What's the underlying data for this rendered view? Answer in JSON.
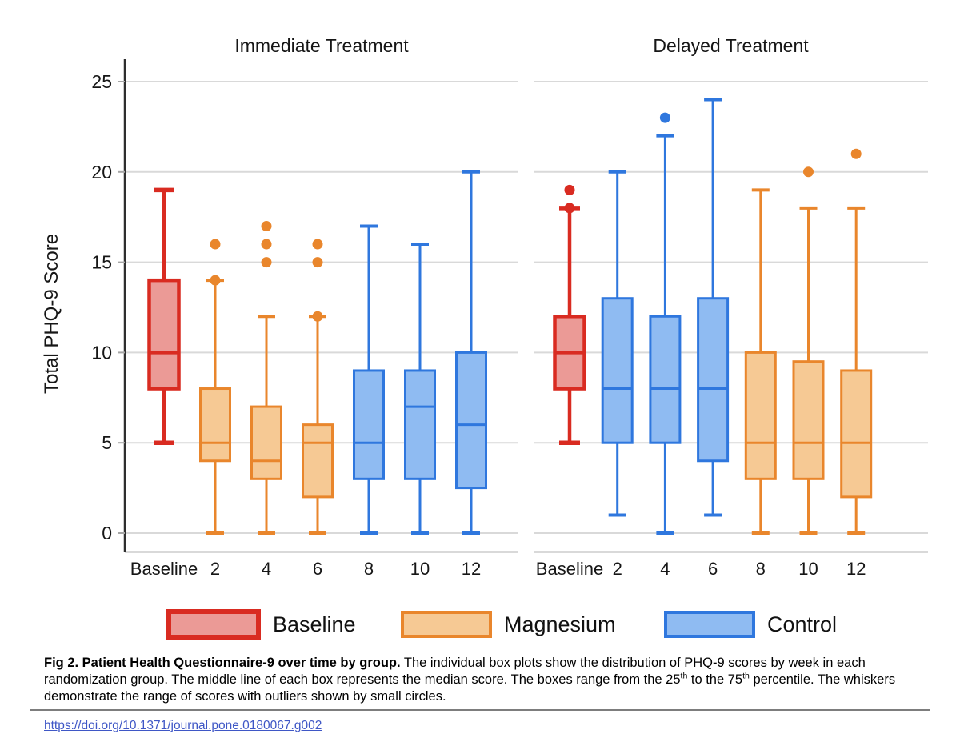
{
  "figure": {
    "y_axis_label": "Total PHQ-9 Score",
    "y_ticks": [
      0,
      5,
      10,
      15,
      20,
      25
    ],
    "x_tick_labels": [
      "Baseline",
      "2",
      "4",
      "6",
      "8",
      "10",
      "12"
    ]
  },
  "legend": {
    "items": [
      {
        "label": "Baseline",
        "stroke": "#d92b21",
        "fill": "#eb9a96"
      },
      {
        "label": "Magnesium",
        "stroke": "#e9862c",
        "fill": "#f6c994"
      },
      {
        "label": "Control",
        "stroke": "#2f77de",
        "fill": "#8fbbf2"
      }
    ]
  },
  "chart_data": [
    {
      "type": "boxplot",
      "title": "Immediate Treatment",
      "ylabel": "Total PHQ-9 Score",
      "ylim": [
        0,
        25
      ],
      "yticks": [
        0,
        5,
        10,
        15,
        20,
        25
      ],
      "categories": [
        "Baseline",
        "2",
        "4",
        "6",
        "8",
        "10",
        "12"
      ],
      "boxes": [
        {
          "x": "Baseline",
          "group": "Baseline",
          "whisker_low": 5,
          "q1": 8,
          "median": 10,
          "q3": 14,
          "whisker_high": 19,
          "outliers": []
        },
        {
          "x": "2",
          "group": "Magnesium",
          "whisker_low": 0,
          "q1": 4,
          "median": 5,
          "q3": 8,
          "whisker_high": 14,
          "outliers": [
            14,
            16
          ]
        },
        {
          "x": "4",
          "group": "Magnesium",
          "whisker_low": 0,
          "q1": 3,
          "median": 4,
          "q3": 7,
          "whisker_high": 12,
          "outliers": [
            15,
            16,
            17
          ]
        },
        {
          "x": "6",
          "group": "Magnesium",
          "whisker_low": 0,
          "q1": 2,
          "median": 5,
          "q3": 6,
          "whisker_high": 12,
          "outliers": [
            12,
            15,
            16
          ]
        },
        {
          "x": "8",
          "group": "Control",
          "whisker_low": 0,
          "q1": 3,
          "median": 5,
          "q3": 9,
          "whisker_high": 17,
          "outliers": []
        },
        {
          "x": "10",
          "group": "Control",
          "whisker_low": 0,
          "q1": 3,
          "median": 7,
          "q3": 9,
          "whisker_high": 16,
          "outliers": []
        },
        {
          "x": "12",
          "group": "Control",
          "whisker_low": 0,
          "q1": 2.5,
          "median": 6,
          "q3": 10,
          "whisker_high": 20,
          "outliers": []
        }
      ]
    },
    {
      "type": "boxplot",
      "title": "Delayed Treatment",
      "ylabel": "Total PHQ-9 Score",
      "ylim": [
        0,
        25
      ],
      "yticks": [
        0,
        5,
        10,
        15,
        20,
        25
      ],
      "categories": [
        "Baseline",
        "2",
        "4",
        "6",
        "8",
        "10",
        "12"
      ],
      "boxes": [
        {
          "x": "Baseline",
          "group": "Baseline",
          "whisker_low": 5,
          "q1": 8,
          "median": 10,
          "q3": 12,
          "whisker_high": 18,
          "outliers": [
            18,
            19
          ]
        },
        {
          "x": "2",
          "group": "Control",
          "whisker_low": 1,
          "q1": 5,
          "median": 8,
          "q3": 13,
          "whisker_high": 20,
          "outliers": []
        },
        {
          "x": "4",
          "group": "Control",
          "whisker_low": 0,
          "q1": 5,
          "median": 8,
          "q3": 12,
          "whisker_high": 22,
          "outliers": [
            23
          ]
        },
        {
          "x": "6",
          "group": "Control",
          "whisker_low": 1,
          "q1": 4,
          "median": 8,
          "q3": 13,
          "whisker_high": 24,
          "outliers": []
        },
        {
          "x": "8",
          "group": "Magnesium",
          "whisker_low": 0,
          "q1": 3,
          "median": 5,
          "q3": 10,
          "whisker_high": 19,
          "outliers": []
        },
        {
          "x": "10",
          "group": "Magnesium",
          "whisker_low": 0,
          "q1": 3,
          "median": 5,
          "q3": 9.5,
          "whisker_high": 18,
          "outliers": [
            20
          ]
        },
        {
          "x": "12",
          "group": "Magnesium",
          "whisker_low": 0,
          "q1": 2,
          "median": 5,
          "q3": 9,
          "whisker_high": 18,
          "outliers": [
            21
          ]
        }
      ]
    }
  ],
  "caption": {
    "bold": "Fig 2. Patient Health Questionnaire-9 over time by group.",
    "body_1": " The individual box plots show the distribution of PHQ-9 scores by week in each randomization group. The middle line of each box represents the median score. The boxes range from the 25",
    "sup_1": "th",
    "body_2": " to the 75",
    "sup_2": "th",
    "body_3": " percentile. The whiskers demonstrate the range of scores with outliers shown by small circles."
  },
  "doi": {
    "text": "https://doi.org/10.1371/journal.pone.0180067.g002"
  }
}
